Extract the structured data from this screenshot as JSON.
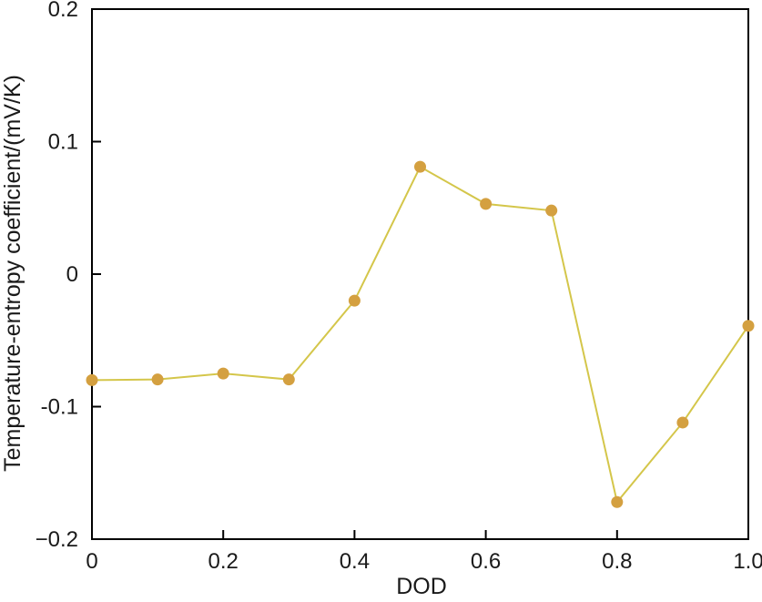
{
  "chart_data": {
    "type": "line",
    "title": "",
    "xlabel": "DOD",
    "ylabel": "Temperature-entropy coefficient/(mV/K)",
    "xlim": [
      0,
      1.0
    ],
    "ylim": [
      -0.2,
      0.2
    ],
    "x_ticks": [
      0,
      0.2,
      0.4,
      0.6,
      0.8,
      1.0
    ],
    "x_tick_labels": [
      "0",
      "0.2",
      "0.4",
      "0.6",
      "0.8",
      "1.0"
    ],
    "y_ticks": [
      -0.2,
      -0.1,
      0,
      0.1,
      0.2
    ],
    "y_tick_labels": [
      "−0.2",
      "-0.1",
      "0",
      "0.1",
      "0.2"
    ],
    "grid": false,
    "series": [
      {
        "line_color": "#d4c64a",
        "marker_color": "#d4a040",
        "x": [
          0,
          0.1,
          0.2,
          0.3,
          0.4,
          0.5,
          0.6,
          0.7,
          0.8,
          0.9,
          1.0
        ],
        "y": [
          -0.08,
          -0.0795,
          -0.075,
          -0.0795,
          -0.02,
          0.081,
          0.053,
          0.048,
          -0.172,
          -0.112,
          -0.039
        ]
      }
    ]
  }
}
